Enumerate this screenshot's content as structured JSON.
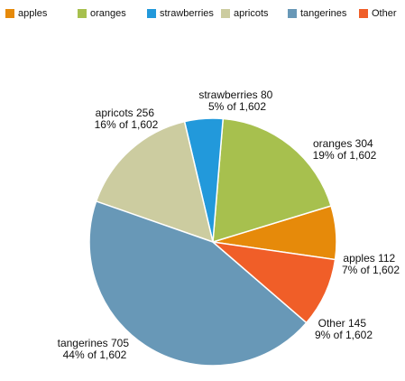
{
  "chart_data": {
    "type": "pie",
    "total_label": "1,602",
    "slices": [
      {
        "name": "apples",
        "value": 112,
        "value_label": "apples 112",
        "share_label": "7% of 1,602",
        "color": "#e68a0a"
      },
      {
        "name": "oranges",
        "value": 304,
        "value_label": "oranges 304",
        "share_label": "19% of 1,602",
        "color": "#a7c04e"
      },
      {
        "name": "strawberries",
        "value": 80,
        "value_label": "strawberries 80",
        "share_label": "5% of 1,602",
        "color": "#2299db"
      },
      {
        "name": "apricots",
        "value": 256,
        "value_label": "apricots 256",
        "share_label": "16% of 1,602",
        "color": "#cccca0"
      },
      {
        "name": "tangerines",
        "value": 705,
        "value_label": "tangerines 705",
        "share_label": "44% of 1,602",
        "color": "#6898b7"
      },
      {
        "name": "Other",
        "value": 145,
        "value_label": "Other 145",
        "share_label": "9% of 1,602",
        "color": "#f05e28"
      }
    ],
    "legend_position": "top-left"
  }
}
